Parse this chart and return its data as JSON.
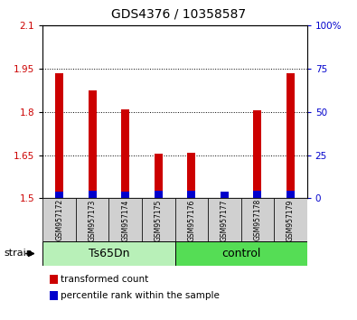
{
  "title": "GDS4376 / 10358587",
  "samples": [
    "GSM957172",
    "GSM957173",
    "GSM957174",
    "GSM957175",
    "GSM957176",
    "GSM957177",
    "GSM957178",
    "GSM957179"
  ],
  "red_values": [
    1.935,
    1.875,
    1.81,
    1.655,
    1.66,
    1.525,
    1.805,
    1.935
  ],
  "blue_heights": [
    0.025,
    0.028,
    0.025,
    0.028,
    0.028,
    0.025,
    0.028,
    0.028
  ],
  "ymin": 1.5,
  "ymax": 2.1,
  "yticks_left": [
    1.5,
    1.65,
    1.8,
    1.95,
    2.1
  ],
  "yticks_right": [
    0,
    25,
    50,
    75,
    100
  ],
  "groups": [
    {
      "label": "Ts65Dn",
      "start": 0,
      "end": 4,
      "color": "#b8f0b8"
    },
    {
      "label": "control",
      "start": 4,
      "end": 8,
      "color": "#55dd55"
    }
  ],
  "strain_label": "strain",
  "legend_items": [
    {
      "color": "#cc0000",
      "label": "transformed count"
    },
    {
      "color": "#0000cc",
      "label": "percentile rank within the sample"
    }
  ],
  "bar_width": 0.25,
  "background_color": "#ffffff",
  "plot_bg": "#ffffff",
  "tick_label_color_left": "#cc0000",
  "tick_label_color_right": "#0000cc"
}
